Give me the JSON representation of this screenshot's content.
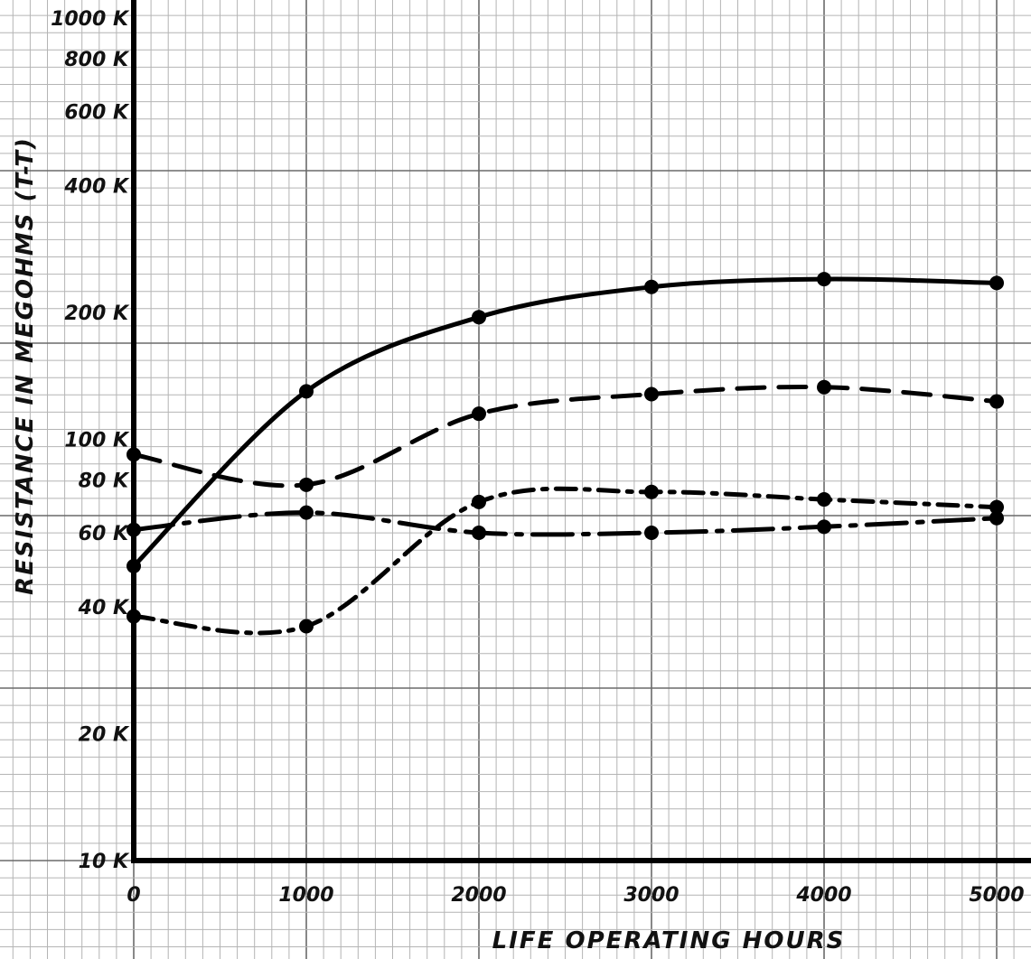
{
  "chart_data": {
    "type": "line",
    "title": "",
    "xlabel": "LIFE OPERATING HOURS",
    "ylabel": "RESISTANCE IN MEGOHMS (T-T)",
    "xlim": [
      0,
      5000
    ],
    "ylim": [
      10,
      1000
    ],
    "yscale": "log",
    "grid": true,
    "x_ticks": [
      {
        "value": 0,
        "label": "0"
      },
      {
        "value": 1000,
        "label": "1000"
      },
      {
        "value": 2000,
        "label": "2000"
      },
      {
        "value": 3000,
        "label": "3000"
      },
      {
        "value": 4000,
        "label": "4000"
      },
      {
        "value": 5000,
        "label": "5000"
      }
    ],
    "y_ticks": [
      {
        "value": 10,
        "label": "10 K"
      },
      {
        "value": 20,
        "label": "20 K"
      },
      {
        "value": 40,
        "label": "40 K"
      },
      {
        "value": 60,
        "label": "60 K"
      },
      {
        "value": 80,
        "label": "80 K"
      },
      {
        "value": 100,
        "label": "100 K"
      },
      {
        "value": 200,
        "label": "200 K"
      },
      {
        "value": 400,
        "label": "400 K"
      },
      {
        "value": 600,
        "label": "600 K"
      },
      {
        "value": 800,
        "label": "800 K"
      },
      {
        "value": 1000,
        "label": "1000 K"
      }
    ],
    "series": [
      {
        "line_style": "solid",
        "x": [
          0,
          1000,
          2000,
          3000,
          4000,
          5000
        ],
        "y": [
          50,
          130,
          195,
          230,
          240,
          235
        ]
      },
      {
        "line_style": "dashed",
        "x": [
          0,
          1000,
          2000,
          3000,
          4000,
          5000
        ],
        "y": [
          92,
          78,
          115,
          128,
          133,
          123
        ]
      },
      {
        "line_style": "long-dash-dot",
        "x": [
          0,
          1000,
          2000,
          3000,
          4000,
          5000
        ],
        "y": [
          61,
          67,
          60,
          60,
          62,
          65
        ]
      },
      {
        "line_style": "dash-dot",
        "x": [
          0,
          1000,
          2000,
          3000,
          4000,
          5000
        ],
        "y": [
          38,
          36,
          71,
          75,
          72,
          69
        ]
      }
    ]
  }
}
